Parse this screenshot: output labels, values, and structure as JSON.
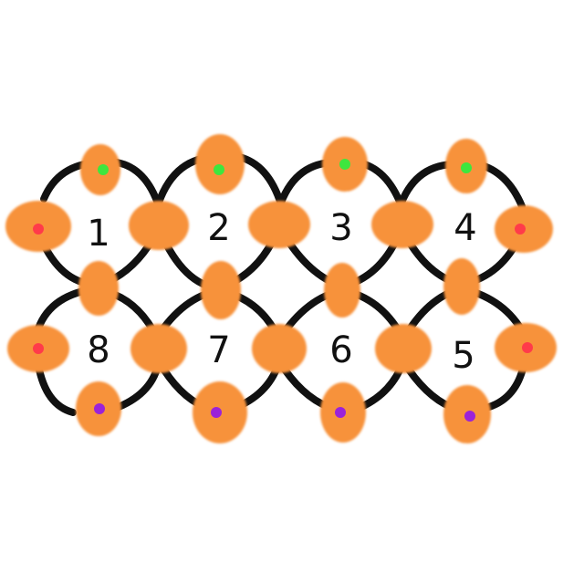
{
  "colors": {
    "bead": "#f7923a",
    "bead_edge": "#ffb877",
    "wire": "#111111",
    "background": "#ffffff",
    "dot_top": "#3ee63e",
    "dot_side": "#ff3b4a",
    "dot_bottom": "#9b22d8"
  },
  "beads": [
    {
      "role": "top",
      "dot": "green"
    },
    {
      "role": "top",
      "dot": "green"
    },
    {
      "role": "top",
      "dot": "green"
    },
    {
      "role": "top",
      "dot": "green"
    },
    {
      "role": "side",
      "dot": "red"
    },
    {
      "role": "side",
      "dot": "red"
    },
    {
      "role": "side",
      "dot": "red"
    },
    {
      "role": "side",
      "dot": "red"
    },
    {
      "role": "bottom",
      "dot": "purple"
    },
    {
      "role": "bottom",
      "dot": "purple"
    },
    {
      "role": "bottom",
      "dot": "purple"
    },
    {
      "role": "bottom",
      "dot": "purple"
    }
  ],
  "cells": {
    "c1": "1",
    "c2": "2",
    "c3": "3",
    "c4": "4",
    "c5": "5",
    "c6": "6",
    "c7": "7",
    "c8": "8"
  }
}
